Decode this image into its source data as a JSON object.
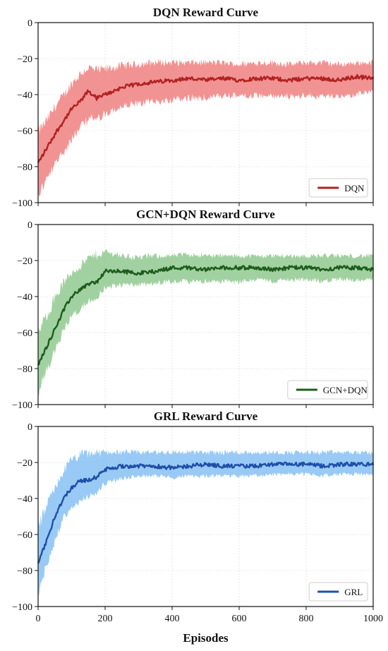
{
  "chart_data": [
    {
      "type": "line",
      "title": "DQN Reward Curve",
      "xlabel": "",
      "ylabel": "",
      "xlim": [
        0,
        1000
      ],
      "ylim": [
        -100,
        0
      ],
      "xticks": [
        0,
        200,
        400,
        600,
        800,
        1000
      ],
      "yticks": [
        0,
        -20,
        -40,
        -60,
        -80,
        -100
      ],
      "grid": true,
      "legend_position": "bottom-right",
      "series": [
        {
          "name": "DQN",
          "color": "#b22222",
          "band_color": "#f08080",
          "x": [
            0,
            25,
            50,
            75,
            100,
            125,
            150,
            175,
            200,
            250,
            300,
            350,
            400,
            450,
            500,
            550,
            600,
            650,
            700,
            750,
            800,
            850,
            900,
            950,
            1000
          ],
          "values": [
            -78,
            -70,
            -62,
            -55,
            -48,
            -44,
            -38,
            -42,
            -40,
            -36,
            -34,
            -33,
            -32,
            -31,
            -32,
            -31,
            -32,
            -31,
            -31,
            -32,
            -31,
            -31,
            -32,
            -30,
            -31
          ],
          "band_lower": [
            -94,
            -86,
            -78,
            -70,
            -63,
            -58,
            -52,
            -53,
            -50,
            -46,
            -44,
            -43,
            -42,
            -41,
            -41,
            -40,
            -40,
            -40,
            -40,
            -40,
            -40,
            -40,
            -40,
            -39,
            -38
          ],
          "band_upper": [
            -62,
            -56,
            -48,
            -42,
            -35,
            -30,
            -26,
            -28,
            -27,
            -25,
            -24,
            -23,
            -23,
            -23,
            -23,
            -23,
            -24,
            -23,
            -23,
            -24,
            -23,
            -23,
            -24,
            -23,
            -23
          ]
        }
      ]
    },
    {
      "type": "line",
      "title": "GCN+DQN Reward Curve",
      "xlabel": "",
      "ylabel": "",
      "xlim": [
        0,
        1000
      ],
      "ylim": [
        -100,
        0
      ],
      "xticks": [
        0,
        200,
        400,
        600,
        800,
        1000
      ],
      "yticks": [
        0,
        -20,
        -40,
        -60,
        -80,
        -100
      ],
      "grid": true,
      "legend_position": "bottom-right",
      "series": [
        {
          "name": "GCN+DQN",
          "color": "#1e5c1e",
          "band_color": "#90c990",
          "x": [
            0,
            25,
            50,
            75,
            100,
            125,
            150,
            175,
            200,
            250,
            300,
            350,
            400,
            450,
            500,
            550,
            600,
            650,
            700,
            750,
            800,
            850,
            900,
            950,
            1000
          ],
          "values": [
            -78,
            -68,
            -58,
            -48,
            -40,
            -36,
            -33,
            -32,
            -26,
            -26,
            -27,
            -26,
            -24,
            -24,
            -25,
            -24,
            -24,
            -24,
            -25,
            -24,
            -24,
            -25,
            -24,
            -24,
            -25
          ],
          "band_lower": [
            -92,
            -80,
            -70,
            -58,
            -50,
            -46,
            -42,
            -40,
            -34,
            -33,
            -33,
            -32,
            -31,
            -31,
            -31,
            -31,
            -31,
            -30,
            -31,
            -30,
            -30,
            -31,
            -30,
            -30,
            -30
          ],
          "band_upper": [
            -62,
            -52,
            -42,
            -34,
            -28,
            -24,
            -20,
            -18,
            -16,
            -18,
            -19,
            -18,
            -18,
            -17,
            -18,
            -18,
            -18,
            -18,
            -18,
            -18,
            -18,
            -18,
            -18,
            -18,
            -18
          ]
        }
      ]
    },
    {
      "type": "line",
      "title": "GRL Reward Curve",
      "xlabel": "Episodes",
      "ylabel": "",
      "xlim": [
        0,
        1000
      ],
      "ylim": [
        -100,
        0
      ],
      "xticks": [
        0,
        200,
        400,
        600,
        800,
        1000
      ],
      "yticks": [
        0,
        -20,
        -40,
        -60,
        -80,
        -100
      ],
      "grid": true,
      "legend_position": "bottom-right",
      "series": [
        {
          "name": "GRL",
          "color": "#1f4fa8",
          "band_color": "#87c1f3",
          "x": [
            0,
            25,
            50,
            75,
            100,
            125,
            150,
            175,
            200,
            250,
            300,
            350,
            400,
            450,
            500,
            550,
            600,
            650,
            700,
            750,
            800,
            850,
            900,
            950,
            1000
          ],
          "values": [
            -76,
            -64,
            -50,
            -40,
            -34,
            -30,
            -30,
            -28,
            -24,
            -22,
            -22,
            -22,
            -23,
            -22,
            -21,
            -22,
            -22,
            -22,
            -21,
            -21,
            -21,
            -22,
            -21,
            -21,
            -21
          ],
          "band_lower": [
            -92,
            -76,
            -62,
            -50,
            -44,
            -40,
            -38,
            -36,
            -31,
            -28,
            -27,
            -27,
            -28,
            -27,
            -27,
            -27,
            -27,
            -27,
            -26,
            -26,
            -26,
            -27,
            -26,
            -26,
            -26
          ],
          "band_upper": [
            -58,
            -46,
            -36,
            -26,
            -20,
            -17,
            -16,
            -16,
            -15,
            -15,
            -15,
            -15,
            -15,
            -15,
            -15,
            -15,
            -15,
            -15,
            -15,
            -15,
            -15,
            -15,
            -15,
            -15,
            -15
          ]
        }
      ]
    }
  ]
}
